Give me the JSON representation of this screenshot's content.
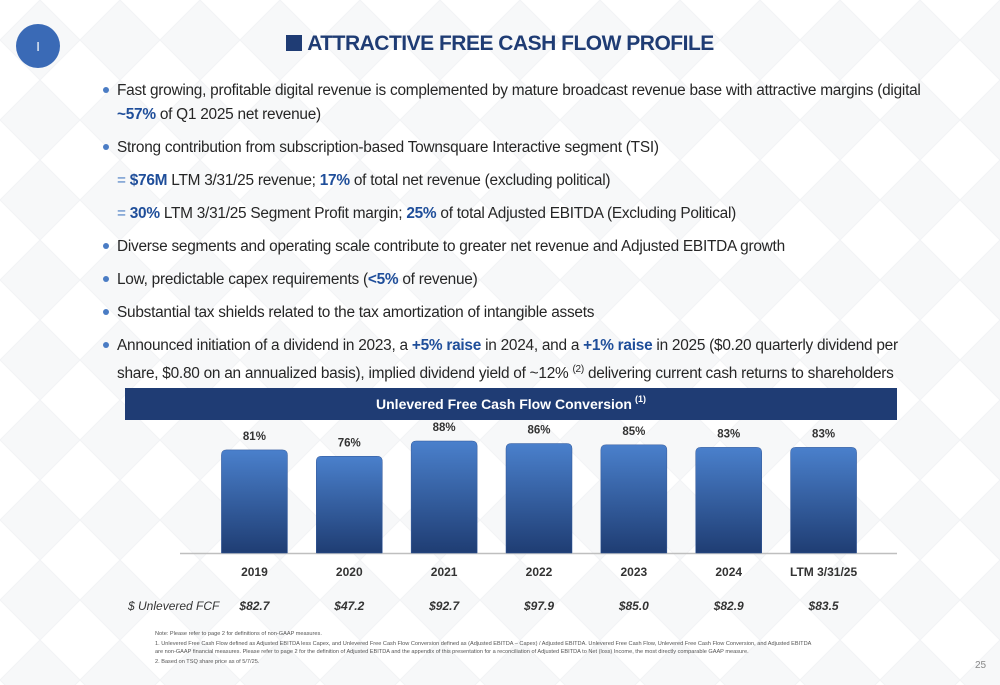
{
  "badge": "I",
  "title": "ATTRACTIVE FREE CASH FLOW PROFILE",
  "bullets": [
    {
      "runs": [
        {
          "text": "Fast growing, profitable digital revenue is complemented by mature broadcast revenue base with attractive margins (digital "
        },
        {
          "text": "~57%",
          "style": "bold"
        },
        {
          "text": " of Q1 2025 net revenue)"
        }
      ]
    },
    {
      "runs": [
        {
          "text": "Strong contribution from subscription-based Townsquare Interactive segment (TSI)"
        }
      ],
      "subs": [
        {
          "marker": "=",
          "runs": [
            {
              "text": "$76M",
              "style": "bold"
            },
            {
              "text": " LTM 3/31/25 revenue; "
            },
            {
              "text": "17%",
              "style": "bold"
            },
            {
              "text": " of total net revenue (excluding political)"
            }
          ]
        },
        {
          "marker": "=",
          "runs": [
            {
              "text": "30%",
              "style": "bold"
            },
            {
              "text": " LTM 3/31/25 Segment Profit margin; "
            },
            {
              "text": "25%",
              "style": "bold"
            },
            {
              "text": " of total Adjusted EBITDA (Excluding Political)"
            }
          ]
        }
      ]
    },
    {
      "runs": [
        {
          "text": "Diverse segments and operating scale contribute to greater net revenue and Adjusted EBITDA growth"
        }
      ]
    },
    {
      "runs": [
        {
          "text": "Low, predictable capex requirements ("
        },
        {
          "text": "<5%",
          "style": "bold"
        },
        {
          "text": " of revenue)"
        }
      ]
    },
    {
      "runs": [
        {
          "text": "Substantial tax shields related to the tax amortization of intangible assets"
        }
      ]
    },
    {
      "runs": [
        {
          "text": "Announced initiation of a dividend in 2023, a "
        },
        {
          "text": "+5% raise",
          "style": "bold"
        },
        {
          "text": " in 2024, and a "
        },
        {
          "text": "+1% raise",
          "style": "bold"
        },
        {
          "text": " in 2025 ($0.20 quarterly dividend per share, $0.80 on an annualized basis), implied dividend yield of ~12% "
        },
        {
          "text": "(2)",
          "style": "sup"
        },
        {
          "text": " delivering current cash returns to shareholders"
        }
      ]
    }
  ],
  "chart_data": {
    "type": "bar",
    "title": "Unlevered Free Cash Flow Conversion",
    "title_note": "(1)",
    "categories": [
      "2019",
      "2020",
      "2021",
      "2022",
      "2023",
      "2024",
      "LTM 3/31/25"
    ],
    "values": [
      81,
      76,
      88,
      86,
      85,
      83,
      83
    ],
    "value_labels": [
      "81%",
      "76%",
      "88%",
      "86%",
      "85%",
      "83%",
      "83%"
    ],
    "color": "#2f5597"
  },
  "fcf_row": {
    "label": "$ Unlevered FCF",
    "values": [
      "$82.7",
      "$47.2",
      "$92.7",
      "$97.9",
      "$85.0",
      "$82.9",
      "$83.5"
    ]
  },
  "footnotes": [
    "Note:  Please refer to page 2 for definitions of non-GAAP measures.",
    "1.     Unlevered Free Cash Flow defined as Adjusted EBITDA less Capex, and Unlevered Free Cash Flow Conversion defined as (Adjusted EBITDA – Capex) / Adjusted EBITDA. Unlevered Free Cash Flow, Unlevered Free Cash Flow Conversion, and Adjusted EBITDA are non-GAAP financial measures. Please refer to page 2 for the definition of Adjusted EBITDA and the appendix of this presentation for a reconciliation of Adjusted EBITDA to Net (loss) Income, the most directly comparable GAAP measure.",
    "2.     Based on TSQ share price as of 5/7/25."
  ],
  "page_number": "25"
}
